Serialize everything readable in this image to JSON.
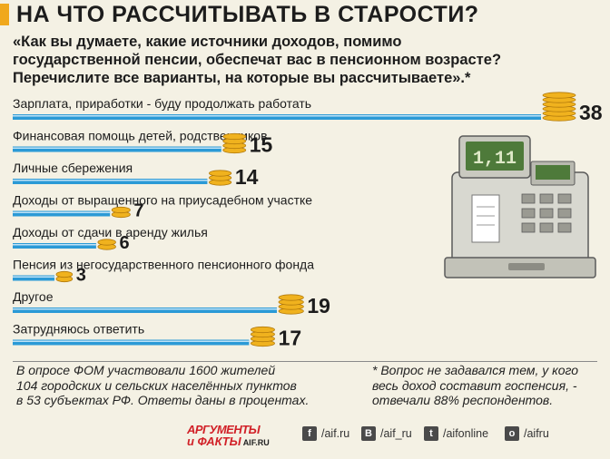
{
  "header": {
    "title": "НА ЧТО РАССЧИТЫВАТЬ В СТАРОСТИ?",
    "question_lines": [
      "«Как вы думаете, какие источники доходов, помимо",
      "государственной пенсии, обеспечат вас в пенсионном возрасте?",
      "Перечислите все варианты, на которые вы рассчитываете».*"
    ]
  },
  "chart_data": {
    "type": "bar",
    "orientation": "horizontal",
    "unit": "percent",
    "categories": [
      "Зарплата, приработки - буду продолжать работать",
      "Финансовая помощь детей, родственников",
      "Личные сбережения",
      "Доходы от выращенного на приусадебном участке",
      "Доходы от сдачи в аренду жилья",
      "Пенсия из негосударственного пенсионного фонда",
      "Другое",
      "Затрудняюсь ответить"
    ],
    "values": [
      38,
      15,
      14,
      7,
      6,
      3,
      19,
      17
    ],
    "value_labels": [
      "38",
      "15",
      "14",
      "7",
      "6",
      "3",
      "19",
      "17"
    ],
    "xlim": [
      0,
      38
    ],
    "bar_color": "#2b9ad6",
    "coin_color": "#f0b21e"
  },
  "footer": {
    "survey_lines": [
      "В опросе ФОМ участвовали 1600 жителей",
      "104 городских и сельских населённых пунктов",
      "в 53 субъектах РФ. Ответы даны в процентах."
    ],
    "footnote_lines": [
      "* Вопрос не задавался тем, у кого",
      "весь доход составит госпенсия, -",
      "отвечали 88% респондентов."
    ],
    "logo_top": "АРГУМЕНТЫ",
    "logo_bottom": "и ФАКТЫ",
    "logo_domain": "AIF.RU",
    "cash_register_display": "1,11",
    "social": [
      {
        "icon": "facebook-icon",
        "glyph": "f",
        "label": "/aif.ru"
      },
      {
        "icon": "vk-icon",
        "glyph": "B",
        "label": "/aif_ru"
      },
      {
        "icon": "twitter-icon",
        "glyph": "t",
        "label": "/aifonline"
      },
      {
        "icon": "odnoklassniki-icon",
        "glyph": "o",
        "label": "/aifru"
      }
    ]
  }
}
